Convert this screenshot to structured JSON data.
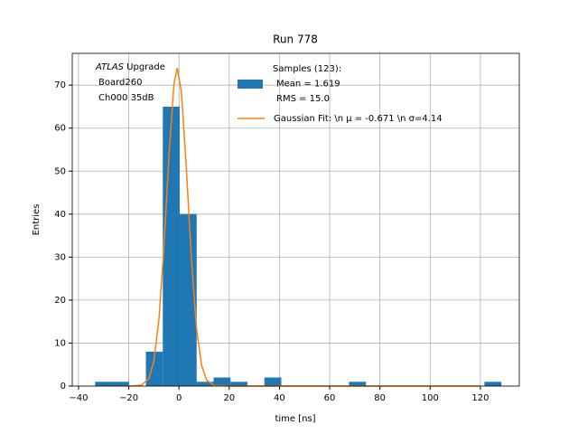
{
  "chart_data": {
    "type": "histogram",
    "title": "Run 778",
    "xlabel": "time [ns]",
    "ylabel": "Entries",
    "annotation_emphasis": "ATLAS",
    "annotation": [
      "Upgrade",
      "Board260",
      "Ch000 35dB"
    ],
    "name": [
      "Samples (123):",
      "Mean = 1.619",
      "RMS = 15.0"
    ],
    "color": "#1f77b4",
    "bins": [
      -33.4,
      -26.66,
      -19.92,
      -13.18,
      -6.44,
      0.3,
      7.04,
      13.78,
      20.52,
      27.26,
      34.0,
      40.74,
      47.48,
      54.22,
      60.96,
      67.7,
      74.44,
      81.18,
      87.92,
      94.66,
      101.4,
      108.14,
      114.88,
      121.62,
      128.36
    ],
    "values": [
      1,
      1,
      0,
      8,
      65,
      40,
      1,
      2,
      1,
      0,
      2,
      0,
      0,
      0,
      0,
      1,
      0,
      0,
      0,
      0,
      0,
      0,
      0,
      1
    ],
    "fit": {
      "type": "line",
      "name": "Gaussian Fit: \\n μ = -0.671 \\n σ=4.14",
      "color": "#ff7f0e",
      "x": [
        -20,
        -15,
        -12,
        -10,
        -8,
        -6,
        -4,
        -2,
        -0.671,
        1,
        3,
        5,
        7,
        9,
        11,
        14,
        20,
        120
      ],
      "y": [
        0,
        0.19,
        1.75,
        5.8,
        15.4,
        32.3,
        53.5,
        70.3,
        74,
        68.2,
        50.0,
        29.0,
        13.3,
        4.8,
        1.4,
        0.14,
        0,
        0
      ]
    },
    "xlim": [
      -42.5,
      135.5
    ],
    "ylim": [
      0,
      77.4
    ],
    "xticks": [
      {
        "value": -40,
        "label": "−40"
      },
      {
        "value": -20,
        "label": "−20"
      },
      0,
      20,
      40,
      60,
      80,
      100,
      120
    ],
    "yticks": [
      0,
      10,
      20,
      30,
      40,
      50,
      60,
      70
    ],
    "grid": true,
    "legend": "upper center"
  }
}
